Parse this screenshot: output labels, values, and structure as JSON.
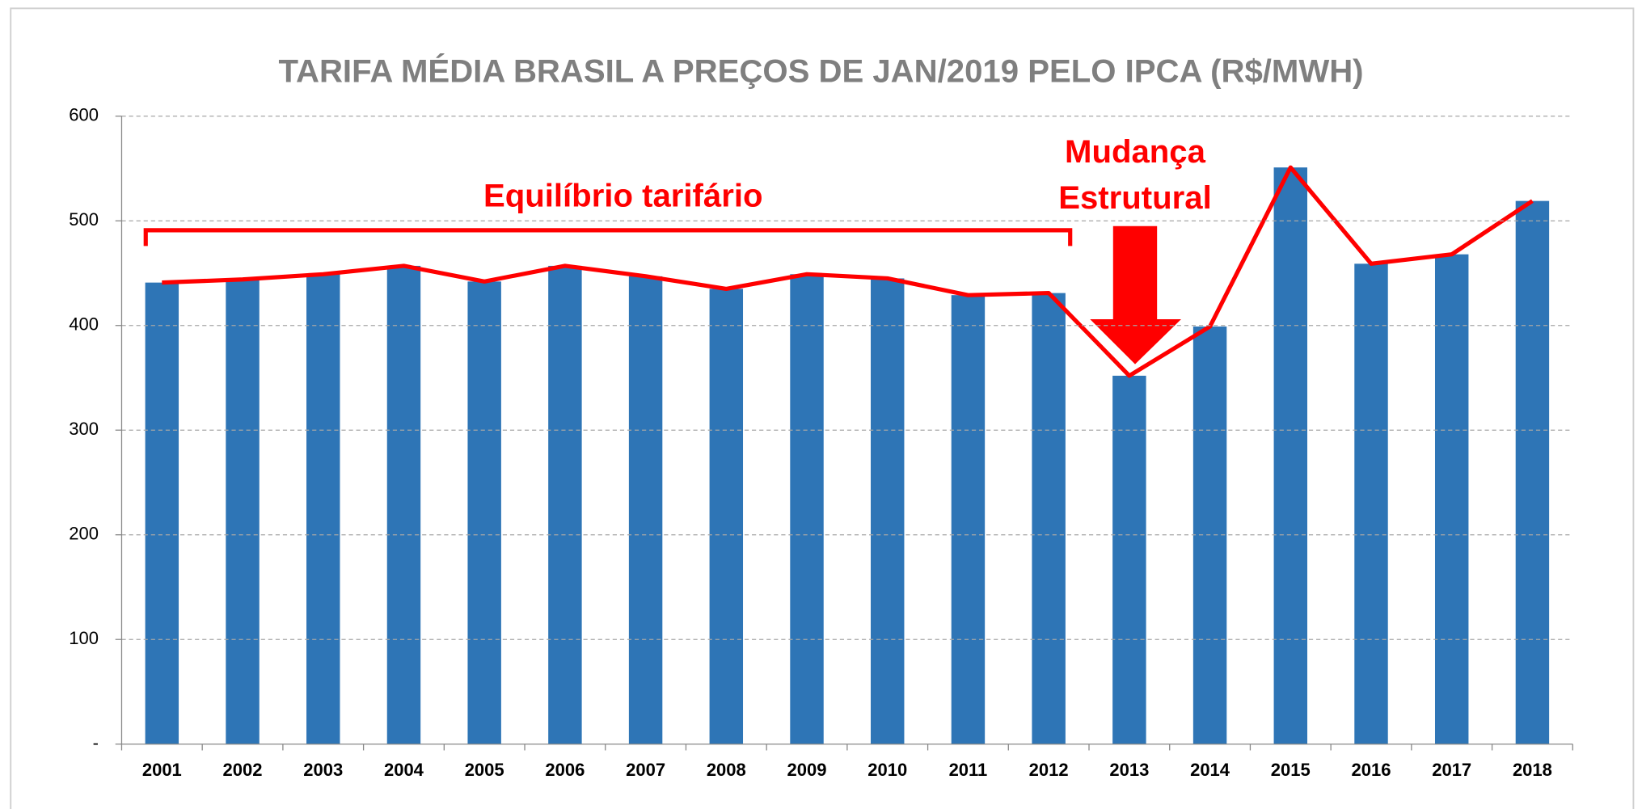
{
  "chart_data": {
    "type": "bar",
    "title": "TARIFA MÉDIA BRASIL A PREÇOS DE JAN/2019 PELO IPCA (R$/MWH)",
    "categories": [
      "2001",
      "2002",
      "2003",
      "2004",
      "2005",
      "2006",
      "2007",
      "2008",
      "2009",
      "2010",
      "2011",
      "2012",
      "2013",
      "2014",
      "2015",
      "2016",
      "2017",
      "2018"
    ],
    "values": [
      441,
      444,
      449,
      457,
      442,
      457,
      447,
      435,
      449,
      445,
      429,
      431,
      352,
      399,
      551,
      459,
      468,
      519
    ],
    "color": "#2e75b6",
    "line_color": "#ff0000",
    "ylim": [
      0,
      600
    ],
    "yticks": [
      {
        "value": 0,
        "label": "-"
      },
      100,
      200,
      300,
      400,
      500,
      600
    ],
    "grid": true,
    "annotations": [
      "Equilíbrio tarifário",
      "Mudança",
      "Estrutural"
    ]
  }
}
